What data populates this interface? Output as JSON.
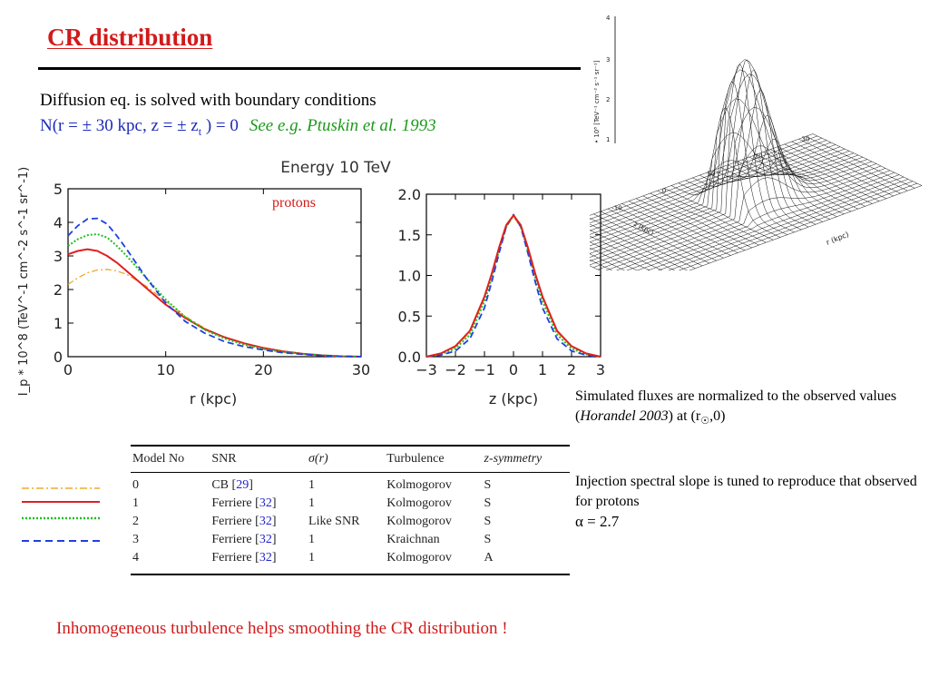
{
  "slide": {
    "title": "CR distribution",
    "intro": "Diffusion eq. is solved with boundary conditions",
    "boundary": {
      "text_a": "N(r = ± 30 kpc, z = ± z",
      "text_sub": "t",
      "text_b": "  )  = 0",
      "reference": "See e.g. Ptuskin et al. 1993"
    },
    "note_1": {
      "a": "Simulated fluxes are normalized to  the observed values (",
      "italic": "Horandel 2003",
      "b": ") at (r",
      "sun": "☉",
      "c": ",0)"
    },
    "note_2": {
      "a": "Injection spectral slope is tuned to reproduce that observed for protons",
      "b": "α = 2.7"
    },
    "conclusion": "Inhomogeneous turbulence helps smoothing the CR distribution !"
  },
  "colors": {
    "title": "#d11a1a",
    "boundary": "#1d2bb8",
    "reference": "#1a9a1a",
    "model_0": "#f0a830",
    "model_1": "#e02020",
    "model_2": "#20c020",
    "model_3": "#2040e0"
  },
  "table": {
    "headers": [
      "Model No",
      "SNR",
      "σ(r)",
      "Turbulence",
      "z-symmetry"
    ],
    "rows": [
      {
        "model": "0",
        "snr": "CB",
        "cite": "29",
        "sigma": "1",
        "turbulence": "Kolmogorov",
        "zsym": "S"
      },
      {
        "model": "1",
        "snr": "Ferriere",
        "cite": "32",
        "sigma": "1",
        "turbulence": "Kolmogorov",
        "zsym": "S"
      },
      {
        "model": "2",
        "snr": "Ferriere",
        "cite": "32",
        "sigma": "Like SNR",
        "turbulence": "Kolmogorov",
        "zsym": "S"
      },
      {
        "model": "3",
        "snr": "Ferriere",
        "cite": "32",
        "sigma": "1",
        "turbulence": "Kraichnan",
        "zsym": "S"
      },
      {
        "model": "4",
        "snr": "Ferriere",
        "cite": "32",
        "sigma": "1",
        "turbulence": "Kolmogorov",
        "zsym": "A"
      }
    ]
  },
  "legend_styles": [
    "dash-dot",
    "solid",
    "dotted",
    "dashed"
  ],
  "surface_plot": {
    "zlabel": "• 10⁸ [TeV⁻¹ cm⁻² s⁻¹ sr⁻¹]",
    "xlabel": "r (kpc)",
    "ylabel": "z (kpc)",
    "z_ticks": [
      "1",
      "2",
      "3",
      "4"
    ],
    "r_ticks": [
      "-30",
      "-20",
      "-10",
      "0",
      "10",
      "20",
      "30"
    ],
    "z_axis_ticks": [
      "-3",
      "-2",
      "-1",
      "0",
      "1",
      "2",
      "3"
    ]
  },
  "chart_data": [
    {
      "type": "line",
      "title": "Energy 10 TeV",
      "annotation": "protons",
      "xlabel": "r (kpc)",
      "ylabel": "I_p * 10^8  (TeV^-1 cm^-2 s^-1 sr^-1)",
      "xlim": [
        0,
        30
      ],
      "ylim": [
        0,
        5
      ],
      "xticks": [
        0,
        10,
        20,
        30
      ],
      "yticks": [
        0,
        1,
        2,
        3,
        4,
        5
      ],
      "x": [
        0,
        1,
        2,
        3,
        4,
        5,
        6,
        8,
        10,
        12,
        14,
        16,
        18,
        20,
        22,
        24,
        26,
        28,
        30
      ],
      "series": [
        {
          "style": "dash-dot",
          "color": "#f0a830",
          "values": [
            2.15,
            2.35,
            2.5,
            2.58,
            2.6,
            2.55,
            2.45,
            2.1,
            1.65,
            1.2,
            0.85,
            0.58,
            0.38,
            0.22,
            0.13,
            0.07,
            0.03,
            0.01,
            0.0
          ]
        },
        {
          "style": "solid",
          "color": "#e02020",
          "values": [
            3.05,
            3.15,
            3.2,
            3.15,
            3.0,
            2.8,
            2.55,
            2.05,
            1.55,
            1.15,
            0.82,
            0.58,
            0.4,
            0.26,
            0.16,
            0.09,
            0.04,
            0.01,
            0.0
          ]
        },
        {
          "style": "dotted",
          "color": "#20c020",
          "values": [
            3.3,
            3.5,
            3.62,
            3.65,
            3.55,
            3.3,
            3.0,
            2.35,
            1.7,
            1.18,
            0.8,
            0.54,
            0.36,
            0.23,
            0.14,
            0.08,
            0.04,
            0.01,
            0.0
          ]
        },
        {
          "style": "dashed",
          "color": "#2040e0",
          "values": [
            3.6,
            3.9,
            4.1,
            4.12,
            3.95,
            3.6,
            3.2,
            2.35,
            1.6,
            1.05,
            0.7,
            0.45,
            0.3,
            0.2,
            0.12,
            0.07,
            0.03,
            0.01,
            0.0
          ]
        }
      ]
    },
    {
      "type": "line",
      "xlabel": "z (kpc)",
      "xlim": [
        -3,
        3
      ],
      "ylim": [
        0,
        2
      ],
      "xticks": [
        -3,
        -2,
        -1,
        0,
        1,
        2,
        3
      ],
      "yticks": [
        0.0,
        0.5,
        1.0,
        1.5,
        2.0
      ],
      "x": [
        -3,
        -2.5,
        -2,
        -1.5,
        -1,
        -0.75,
        -0.5,
        -0.25,
        0,
        0.25,
        0.5,
        0.75,
        1,
        1.5,
        2,
        2.5,
        3
      ],
      "series": [
        {
          "style": "dash-dot",
          "color": "#f0a830",
          "values": [
            0.0,
            0.04,
            0.12,
            0.3,
            0.72,
            1.0,
            1.32,
            1.6,
            1.72,
            1.6,
            1.32,
            1.0,
            0.72,
            0.3,
            0.12,
            0.04,
            0.0
          ]
        },
        {
          "style": "dotted",
          "color": "#20c020",
          "values": [
            0.0,
            0.03,
            0.1,
            0.27,
            0.68,
            0.97,
            1.3,
            1.6,
            1.74,
            1.6,
            1.3,
            0.97,
            0.68,
            0.27,
            0.1,
            0.03,
            0.0
          ]
        },
        {
          "style": "dashed",
          "color": "#2040e0",
          "values": [
            0.0,
            0.02,
            0.07,
            0.22,
            0.6,
            0.92,
            1.27,
            1.6,
            1.75,
            1.6,
            1.27,
            0.92,
            0.6,
            0.22,
            0.07,
            0.02,
            0.0
          ]
        },
        {
          "style": "solid",
          "color": "#e02020",
          "values": [
            0.0,
            0.04,
            0.13,
            0.32,
            0.74,
            1.02,
            1.34,
            1.62,
            1.74,
            1.62,
            1.34,
            1.02,
            0.74,
            0.32,
            0.13,
            0.04,
            0.0
          ]
        }
      ]
    }
  ]
}
